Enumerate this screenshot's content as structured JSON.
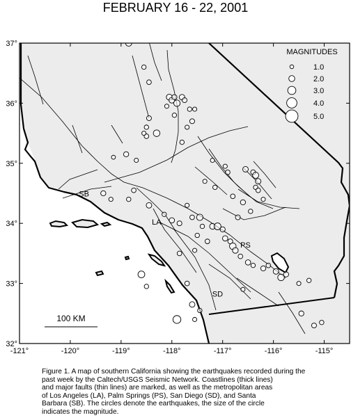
{
  "title": "FEBRUARY 16 - 22, 2001",
  "map": {
    "lon_range": [
      -121,
      -114.5
    ],
    "lat_range": [
      32,
      37
    ],
    "lon_ticks": [
      {
        "value": -121,
        "label": "-121°"
      },
      {
        "value": -120,
        "label": "-120°"
      },
      {
        "value": -119,
        "label": "-119°"
      },
      {
        "value": -118,
        "label": "-118°"
      },
      {
        "value": -117,
        "label": "-117°"
      },
      {
        "value": -116,
        "label": "-116°"
      },
      {
        "value": -115,
        "label": "-115°"
      }
    ],
    "lat_ticks": [
      {
        "value": 37,
        "label": "37°"
      },
      {
        "value": 36,
        "label": "36°"
      },
      {
        "value": 35,
        "label": "35°"
      },
      {
        "value": 34,
        "label": "34°"
      },
      {
        "value": 33,
        "label": "33°"
      },
      {
        "value": 32,
        "label": "32°"
      }
    ],
    "legend": {
      "title": "MAGNITUDES",
      "items": [
        {
          "label": "1.0",
          "magnitude": 1.0
        },
        {
          "label": "2.0",
          "magnitude": 2.0
        },
        {
          "label": "3.0",
          "magnitude": 3.0
        },
        {
          "label": "4.0",
          "magnitude": 4.0
        },
        {
          "label": "5.0",
          "magnitude": 5.0
        }
      ]
    },
    "scale_bar": {
      "label": "100 KM"
    },
    "cities": [
      {
        "label": "SB",
        "lon": -119.73,
        "lat": 34.45
      },
      {
        "label": "LA",
        "lon": -118.3,
        "lat": 33.98
      },
      {
        "label": "PS",
        "lon": -116.55,
        "lat": 33.6
      },
      {
        "label": "SD",
        "lon": -117.1,
        "lat": 32.78
      }
    ],
    "earthquakes": [
      {
        "lon": -118.85,
        "lat": 37.0,
        "mag": 2.1
      },
      {
        "lon": -118.55,
        "lat": 36.6,
        "mag": 1.3
      },
      {
        "lon": -118.45,
        "lat": 36.35,
        "mag": 1.4
      },
      {
        "lon": -118.05,
        "lat": 36.1,
        "mag": 2.0
      },
      {
        "lon": -118.0,
        "lat": 36.05,
        "mag": 1.9
      },
      {
        "lon": -117.95,
        "lat": 36.1,
        "mag": 1.6
      },
      {
        "lon": -117.9,
        "lat": 36.0,
        "mag": 2.2
      },
      {
        "lon": -117.8,
        "lat": 36.1,
        "mag": 1.8
      },
      {
        "lon": -117.75,
        "lat": 36.05,
        "mag": 1.5
      },
      {
        "lon": -117.65,
        "lat": 35.9,
        "mag": 1.3
      },
      {
        "lon": -117.55,
        "lat": 35.9,
        "mag": 1.2
      },
      {
        "lon": -118.1,
        "lat": 35.95,
        "mag": 1.2
      },
      {
        "lon": -118.45,
        "lat": 35.75,
        "mag": 1.5
      },
      {
        "lon": -118.5,
        "lat": 35.6,
        "mag": 1.3
      },
      {
        "lon": -118.5,
        "lat": 35.45,
        "mag": 1.4
      },
      {
        "lon": -118.55,
        "lat": 35.5,
        "mag": 1.2
      },
      {
        "lon": -118.3,
        "lat": 35.5,
        "mag": 2.3
      },
      {
        "lon": -117.95,
        "lat": 35.8,
        "mag": 1.3
      },
      {
        "lon": -117.7,
        "lat": 35.6,
        "mag": 1.2
      },
      {
        "lon": -117.6,
        "lat": 35.7,
        "mag": 1.5
      },
      {
        "lon": -118.9,
        "lat": 35.15,
        "mag": 1.6
      },
      {
        "lon": -118.7,
        "lat": 35.05,
        "mag": 1.2
      },
      {
        "lon": -119.15,
        "lat": 35.1,
        "mag": 1.1
      },
      {
        "lon": -117.8,
        "lat": 35.35,
        "mag": 1.3
      },
      {
        "lon": -117.2,
        "lat": 35.05,
        "mag": 1.2
      },
      {
        "lon": -116.95,
        "lat": 34.95,
        "mag": 1.2
      },
      {
        "lon": -116.9,
        "lat": 34.85,
        "mag": 1.4
      },
      {
        "lon": -116.55,
        "lat": 34.9,
        "mag": 1.8
      },
      {
        "lon": -116.4,
        "lat": 34.85,
        "mag": 1.5
      },
      {
        "lon": -116.35,
        "lat": 34.8,
        "mag": 2.1
      },
      {
        "lon": -116.3,
        "lat": 34.7,
        "mag": 1.8
      },
      {
        "lon": -116.35,
        "lat": 34.6,
        "mag": 1.3
      },
      {
        "lon": -116.3,
        "lat": 34.55,
        "mag": 1.4
      },
      {
        "lon": -116.2,
        "lat": 34.4,
        "mag": 1.2
      },
      {
        "lon": -116.6,
        "lat": 34.35,
        "mag": 1.6
      },
      {
        "lon": -116.8,
        "lat": 34.45,
        "mag": 1.4
      },
      {
        "lon": -117.15,
        "lat": 34.6,
        "mag": 1.3
      },
      {
        "lon": -117.35,
        "lat": 34.7,
        "mag": 1.2
      },
      {
        "lon": -118.75,
        "lat": 34.55,
        "mag": 1.4
      },
      {
        "lon": -118.85,
        "lat": 34.4,
        "mag": 1.3
      },
      {
        "lon": -119.2,
        "lat": 34.4,
        "mag": 1.2
      },
      {
        "lon": -119.35,
        "lat": 34.5,
        "mag": 1.6
      },
      {
        "lon": -118.45,
        "lat": 34.3,
        "mag": 1.8
      },
      {
        "lon": -118.15,
        "lat": 34.15,
        "mag": 1.3
      },
      {
        "lon": -118.0,
        "lat": 34.05,
        "mag": 1.7
      },
      {
        "lon": -117.85,
        "lat": 34.0,
        "mag": 1.5
      },
      {
        "lon": -117.6,
        "lat": 34.1,
        "mag": 1.4
      },
      {
        "lon": -117.45,
        "lat": 34.1,
        "mag": 2.2
      },
      {
        "lon": -117.4,
        "lat": 33.95,
        "mag": 1.3
      },
      {
        "lon": -117.2,
        "lat": 33.95,
        "mag": 1.9
      },
      {
        "lon": -117.1,
        "lat": 33.95,
        "mag": 2.4
      },
      {
        "lon": -117.0,
        "lat": 33.9,
        "mag": 1.6
      },
      {
        "lon": -116.95,
        "lat": 33.75,
        "mag": 1.7
      },
      {
        "lon": -116.85,
        "lat": 33.7,
        "mag": 1.5
      },
      {
        "lon": -116.8,
        "lat": 33.62,
        "mag": 2.3
      },
      {
        "lon": -116.75,
        "lat": 33.55,
        "mag": 1.9
      },
      {
        "lon": -116.65,
        "lat": 33.45,
        "mag": 1.4
      },
      {
        "lon": -116.5,
        "lat": 33.35,
        "mag": 1.7
      },
      {
        "lon": -116.4,
        "lat": 33.3,
        "mag": 1.3
      },
      {
        "lon": -116.2,
        "lat": 33.25,
        "mag": 1.6
      },
      {
        "lon": -116.1,
        "lat": 33.3,
        "mag": 1.4
      },
      {
        "lon": -115.95,
        "lat": 33.2,
        "mag": 1.8
      },
      {
        "lon": -115.85,
        "lat": 33.1,
        "mag": 2.3
      },
      {
        "lon": -115.75,
        "lat": 33.15,
        "mag": 1.6
      },
      {
        "lon": -115.5,
        "lat": 33.0,
        "mag": 1.2
      },
      {
        "lon": -115.3,
        "lat": 33.05,
        "mag": 1.3
      },
      {
        "lon": -117.5,
        "lat": 33.8,
        "mag": 1.3
      },
      {
        "lon": -117.3,
        "lat": 33.7,
        "mag": 1.4
      },
      {
        "lon": -117.55,
        "lat": 33.55,
        "mag": 1.2
      },
      {
        "lon": -117.85,
        "lat": 33.5,
        "mag": 1.4
      },
      {
        "lon": -118.6,
        "lat": 33.15,
        "mag": 2.4
      },
      {
        "lon": -118.5,
        "lat": 32.95,
        "mag": 1.3
      },
      {
        "lon": -117.7,
        "lat": 33.0,
        "mag": 1.4
      },
      {
        "lon": -117.6,
        "lat": 32.65,
        "mag": 1.8
      },
      {
        "lon": -117.45,
        "lat": 32.55,
        "mag": 1.3
      },
      {
        "lon": -117.55,
        "lat": 32.4,
        "mag": 1.2
      },
      {
        "lon": -117.9,
        "lat": 32.4,
        "mag": 2.9
      },
      {
        "lon": -116.6,
        "lat": 32.9,
        "mag": 1.2
      },
      {
        "lon": -115.45,
        "lat": 32.5,
        "mag": 1.6
      },
      {
        "lon": -115.2,
        "lat": 32.3,
        "mag": 1.5
      },
      {
        "lon": -115.05,
        "lat": 32.35,
        "mag": 1.3
      },
      {
        "lon": -116.7,
        "lat": 34.1,
        "mag": 1.5
      },
      {
        "lon": -116.45,
        "lat": 34.2,
        "mag": 1.3
      },
      {
        "lon": -117.7,
        "lat": 34.3,
        "mag": 1.2
      }
    ]
  },
  "caption": "Figure 1. A map of southern California showing the earthquakes recorded during the\npast week by the Caltech/USGS Seismic Network.  Coastlines (thick lines)\nand major faults (thin lines) are marked, as well as the metropolitan areas\nof Los Angeles (LA), Palm Springs (PS), San Diego (SD), and Santa\nBarbara (SB).  The circles denote the earthquakes, the size of the circle\nindicates the magnitude."
}
